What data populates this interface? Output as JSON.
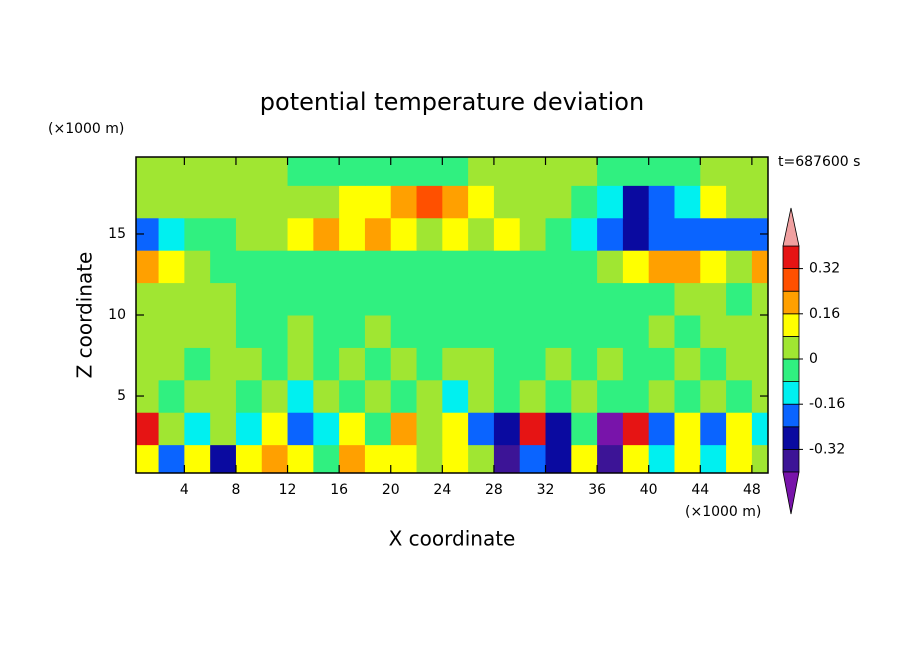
{
  "chart_data": {
    "type": "contour",
    "title": "potential temperature deviation",
    "x_label": "X coordinate",
    "y_label": "Z coordinate",
    "x_unit": "(×1000 m)",
    "y_unit": "(×1000 m)",
    "annotation": "t=687600 s",
    "xlim": [
      0.25,
      49.25
    ],
    "ylim": [
      0.25,
      19.75
    ],
    "xticks": [
      4,
      8,
      12,
      16,
      20,
      24,
      28,
      32,
      36,
      40,
      44,
      48
    ],
    "yticks": [
      5,
      10,
      15
    ],
    "x": [
      1,
      3,
      5,
      7,
      9,
      11,
      13,
      15,
      17,
      19,
      21,
      23,
      25,
      27,
      29,
      31,
      33,
      35,
      37,
      39,
      41,
      43,
      45,
      47,
      49
    ],
    "y": [
      1,
      3,
      5,
      7,
      9,
      11,
      13,
      15,
      17,
      19
    ],
    "z": [
      [
        0.1,
        -0.2,
        0.1,
        -0.3,
        0.1,
        0.2,
        0.1,
        -0.04,
        0.2,
        0.1,
        0.1,
        0.04,
        0.1,
        0.04,
        -0.35,
        -0.2,
        -0.3,
        0.1,
        -0.35,
        0.1,
        -0.1,
        0.1,
        -0.1,
        0.1,
        0.04
      ],
      [
        0.35,
        0.04,
        -0.1,
        0.04,
        -0.1,
        0.1,
        -0.2,
        -0.1,
        0.1,
        -0.04,
        0.2,
        0.04,
        0.1,
        -0.2,
        -0.3,
        0.35,
        -0.3,
        -0.04,
        -0.42,
        0.36,
        -0.2,
        0.1,
        -0.2,
        0.1,
        -0.1
      ],
      [
        0.04,
        -0.04,
        0.04,
        0.04,
        -0.04,
        0.04,
        -0.1,
        0.04,
        -0.04,
        0.04,
        -0.04,
        0.04,
        -0.1,
        0.04,
        -0.04,
        0.04,
        -0.04,
        0.04,
        -0.04,
        -0.04,
        0.04,
        -0.04,
        0.04,
        -0.04,
        0.04
      ],
      [
        0.04,
        0.04,
        -0.04,
        0.04,
        0.04,
        -0.04,
        0.04,
        -0.04,
        0.04,
        -0.04,
        0.04,
        -0.04,
        0.04,
        0.04,
        -0.04,
        -0.04,
        0.04,
        -0.04,
        0.04,
        -0.04,
        -0.04,
        0.04,
        -0.04,
        0.04,
        0.04
      ],
      [
        0.04,
        0.04,
        0.04,
        0.04,
        -0.04,
        -0.04,
        0.04,
        -0.04,
        -0.04,
        0.04,
        -0.04,
        -0.04,
        -0.04,
        -0.04,
        -0.04,
        -0.04,
        -0.04,
        -0.04,
        -0.04,
        -0.04,
        0.04,
        -0.04,
        0.04,
        0.04,
        0.04
      ],
      [
        0.04,
        0.04,
        0.04,
        0.04,
        -0.04,
        -0.04,
        -0.04,
        -0.04,
        -0.04,
        -0.04,
        -0.04,
        -0.04,
        -0.04,
        -0.04,
        -0.04,
        -0.04,
        -0.04,
        -0.04,
        -0.04,
        -0.04,
        -0.04,
        0.04,
        0.04,
        -0.04,
        0.04
      ],
      [
        0.2,
        0.1,
        0.04,
        -0.04,
        -0.04,
        -0.04,
        -0.04,
        -0.04,
        -0.04,
        -0.04,
        -0.04,
        -0.04,
        -0.04,
        -0.04,
        -0.04,
        -0.04,
        -0.04,
        -0.04,
        0.04,
        0.1,
        0.2,
        0.2,
        0.1,
        0.04,
        0.2
      ],
      [
        -0.2,
        -0.1,
        -0.04,
        -0.04,
        0.04,
        0.04,
        0.1,
        0.2,
        0.1,
        0.2,
        0.1,
        0.04,
        0.1,
        0.04,
        0.1,
        0.04,
        -0.04,
        -0.1,
        -0.2,
        -0.3,
        -0.2,
        -0.2,
        -0.2,
        -0.2,
        -0.2
      ],
      [
        0.04,
        0.04,
        0.04,
        0.04,
        0.04,
        0.04,
        0.04,
        0.04,
        0.1,
        0.1,
        0.2,
        0.3,
        0.2,
        0.1,
        0.04,
        0.04,
        0.04,
        -0.04,
        -0.1,
        -0.3,
        -0.2,
        -0.1,
        0.1,
        0.04,
        0.04
      ],
      [
        0.04,
        0.04,
        0.04,
        0.04,
        0.04,
        0.04,
        -0.04,
        -0.04,
        -0.04,
        -0.04,
        -0.04,
        -0.04,
        -0.04,
        0.04,
        0.04,
        0.04,
        0.04,
        0.04,
        -0.04,
        -0.04,
        -0.04,
        -0.04,
        0.04,
        0.04,
        0.04
      ]
    ],
    "levels": [
      -0.4,
      -0.32,
      -0.24,
      -0.16,
      -0.08,
      0,
      0.08,
      0.16,
      0.24,
      0.32,
      0.4
    ],
    "colors": [
      "#7814aa",
      "#3c1496",
      "#0a0aa0",
      "#0a64ff",
      "#00f0f0",
      "#30f080",
      "#a0e632",
      "#ffff00",
      "#ffa000",
      "#ff5000",
      "#e61414",
      "#f0a0a0"
    ],
    "colorbar_ticks": [
      -0.32,
      -0.16,
      0,
      0.16,
      0.32
    ]
  }
}
